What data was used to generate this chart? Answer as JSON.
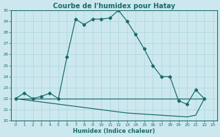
{
  "title": "Courbe de l'humidex pour Hatay",
  "xlabel": "Humidex (Indice chaleur)",
  "xlim": [
    -0.5,
    23.5
  ],
  "ylim": [
    20,
    30
  ],
  "yticks": [
    20,
    21,
    22,
    23,
    24,
    25,
    26,
    27,
    28,
    29,
    30
  ],
  "xticks": [
    0,
    1,
    2,
    3,
    4,
    5,
    6,
    7,
    8,
    9,
    10,
    11,
    12,
    13,
    14,
    15,
    16,
    17,
    18,
    19,
    20,
    21,
    22,
    23
  ],
  "bg_color": "#cce8ee",
  "line_color": "#1a6b6b",
  "line1_x": [
    0,
    1,
    2,
    3,
    4,
    5,
    6,
    7,
    8,
    9,
    10,
    11,
    12,
    13,
    14,
    15,
    16,
    17,
    18,
    19,
    20,
    21,
    22
  ],
  "line1_y": [
    22.0,
    22.5,
    22.0,
    22.2,
    22.5,
    22.0,
    25.8,
    29.2,
    28.7,
    29.2,
    29.2,
    29.3,
    30.0,
    29.0,
    27.8,
    26.5,
    25.0,
    24.0,
    24.0,
    21.8,
    21.5,
    22.8,
    22.0
  ],
  "line2_x": [
    0,
    1,
    2,
    3,
    4,
    5,
    6,
    7,
    8,
    9,
    10,
    11,
    12,
    13,
    14,
    15,
    16,
    17,
    18,
    19,
    20,
    21,
    22
  ],
  "line2_y": [
    22.0,
    22.0,
    22.0,
    22.0,
    22.0,
    22.0,
    22.0,
    22.0,
    22.0,
    22.0,
    22.0,
    22.0,
    22.0,
    22.0,
    22.0,
    22.0,
    22.0,
    22.0,
    22.0,
    22.0,
    22.0,
    22.0,
    22.0
  ],
  "line3_x": [
    0,
    1,
    2,
    3,
    4,
    5,
    6,
    7,
    8,
    9,
    10,
    11,
    12,
    13,
    14,
    15,
    16,
    17,
    18,
    19,
    20,
    21,
    22
  ],
  "line3_y": [
    22.0,
    21.9,
    21.8,
    21.7,
    21.6,
    21.5,
    21.4,
    21.3,
    21.2,
    21.1,
    21.0,
    20.9,
    20.8,
    20.7,
    20.65,
    20.6,
    20.55,
    20.5,
    20.45,
    20.4,
    20.35,
    20.5,
    22.0
  ],
  "grid_color": "#aad4dc",
  "title_fontsize": 7,
  "xlabel_fontsize": 6,
  "tick_fontsize": 4.5
}
